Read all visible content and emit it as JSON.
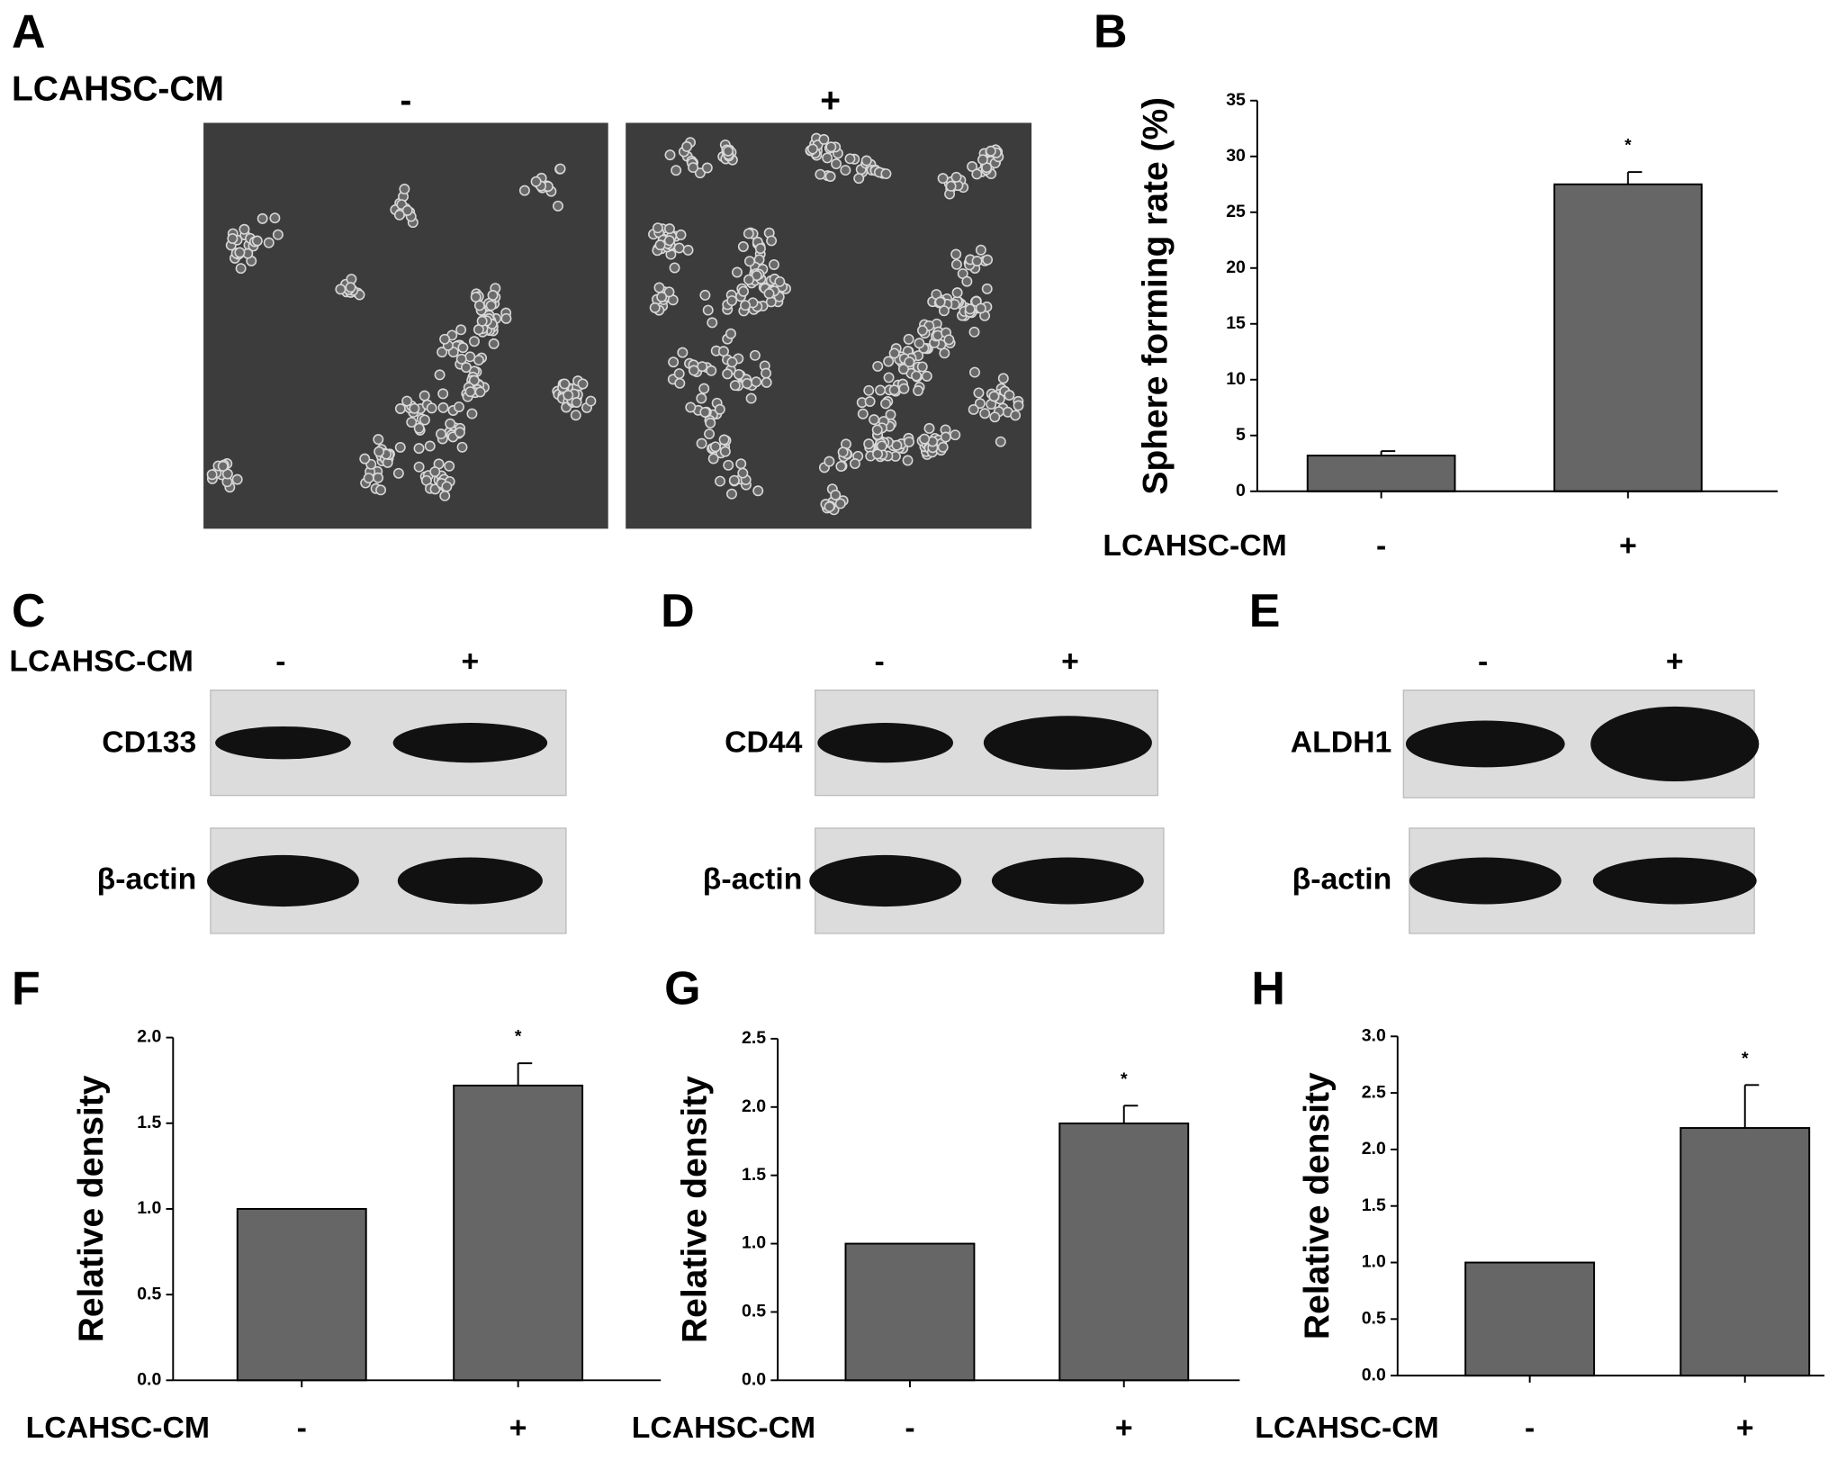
{
  "panels": {
    "A": {
      "letter": "A",
      "treatment_label": "LCAHSC-CM",
      "conditions": [
        "-",
        "+"
      ]
    },
    "C": {
      "letter": "C",
      "treatment_label": "LCAHSC-CM",
      "conditions": [
        "-",
        "+"
      ],
      "bands": [
        "CD133",
        "β-actin"
      ]
    },
    "D": {
      "letter": "D",
      "conditions": [
        "-",
        "+"
      ],
      "bands": [
        "CD44",
        "β-actin"
      ]
    },
    "E": {
      "letter": "E",
      "conditions": [
        "-",
        "+"
      ],
      "bands": [
        "ALDH1",
        "β-actin"
      ]
    }
  },
  "chart_data": [
    {
      "type": "bar",
      "panel": "B",
      "y_label": "Sphere forming rate (%)",
      "x_label": "LCAHSC-CM",
      "categories": [
        "-",
        "+"
      ],
      "values": [
        3.2,
        27.5
      ],
      "errors": [
        0.4,
        1.1
      ],
      "significance": [
        null,
        "*"
      ],
      "color": "#666666",
      "ylim": [
        0,
        35
      ],
      "yticks": [
        0,
        5,
        10,
        15,
        20,
        25,
        30,
        35
      ]
    },
    {
      "type": "bar",
      "panel": "F",
      "y_label": "Relative density",
      "x_label": "LCAHSC-CM",
      "categories": [
        "-",
        "+"
      ],
      "values": [
        1.0,
        1.72
      ],
      "errors": [
        0,
        0.13
      ],
      "significance": [
        null,
        "*"
      ],
      "color": "#666666",
      "ylim": [
        0,
        2
      ],
      "yticks": [
        {
          "value": 0,
          "label": "0.0"
        },
        0.5,
        {
          "value": 1,
          "label": "1.0"
        },
        1.5,
        {
          "value": 2,
          "label": "2.0"
        }
      ]
    },
    {
      "type": "bar",
      "panel": "G",
      "y_label": "Relative density",
      "x_label": "LCAHSC-CM",
      "categories": [
        "-",
        "+"
      ],
      "values": [
        1.0,
        1.88
      ],
      "errors": [
        0,
        0.13
      ],
      "significance": [
        null,
        "*"
      ],
      "color": "#666666",
      "ylim": [
        0,
        2.5
      ],
      "yticks": [
        {
          "value": 0,
          "label": "0.0"
        },
        0.5,
        {
          "value": 1,
          "label": "1.0"
        },
        1.5,
        {
          "value": 2,
          "label": "2.0"
        },
        2.5
      ]
    },
    {
      "type": "bar",
      "panel": "H",
      "y_label": "Relative density",
      "x_label": "LCAHSC-CM",
      "categories": [
        "-",
        "+"
      ],
      "values": [
        1.0,
        2.19
      ],
      "errors": [
        0,
        0.38
      ],
      "significance": [
        null,
        "*"
      ],
      "color": "#666666",
      "ylim": [
        0,
        3
      ],
      "yticks": [
        {
          "value": 0,
          "label": "0.0"
        },
        0.5,
        {
          "value": 1,
          "label": "1.0"
        },
        1.5,
        {
          "value": 2,
          "label": "2.0"
        },
        2.5,
        {
          "value": 3,
          "label": "3.0"
        }
      ]
    }
  ]
}
